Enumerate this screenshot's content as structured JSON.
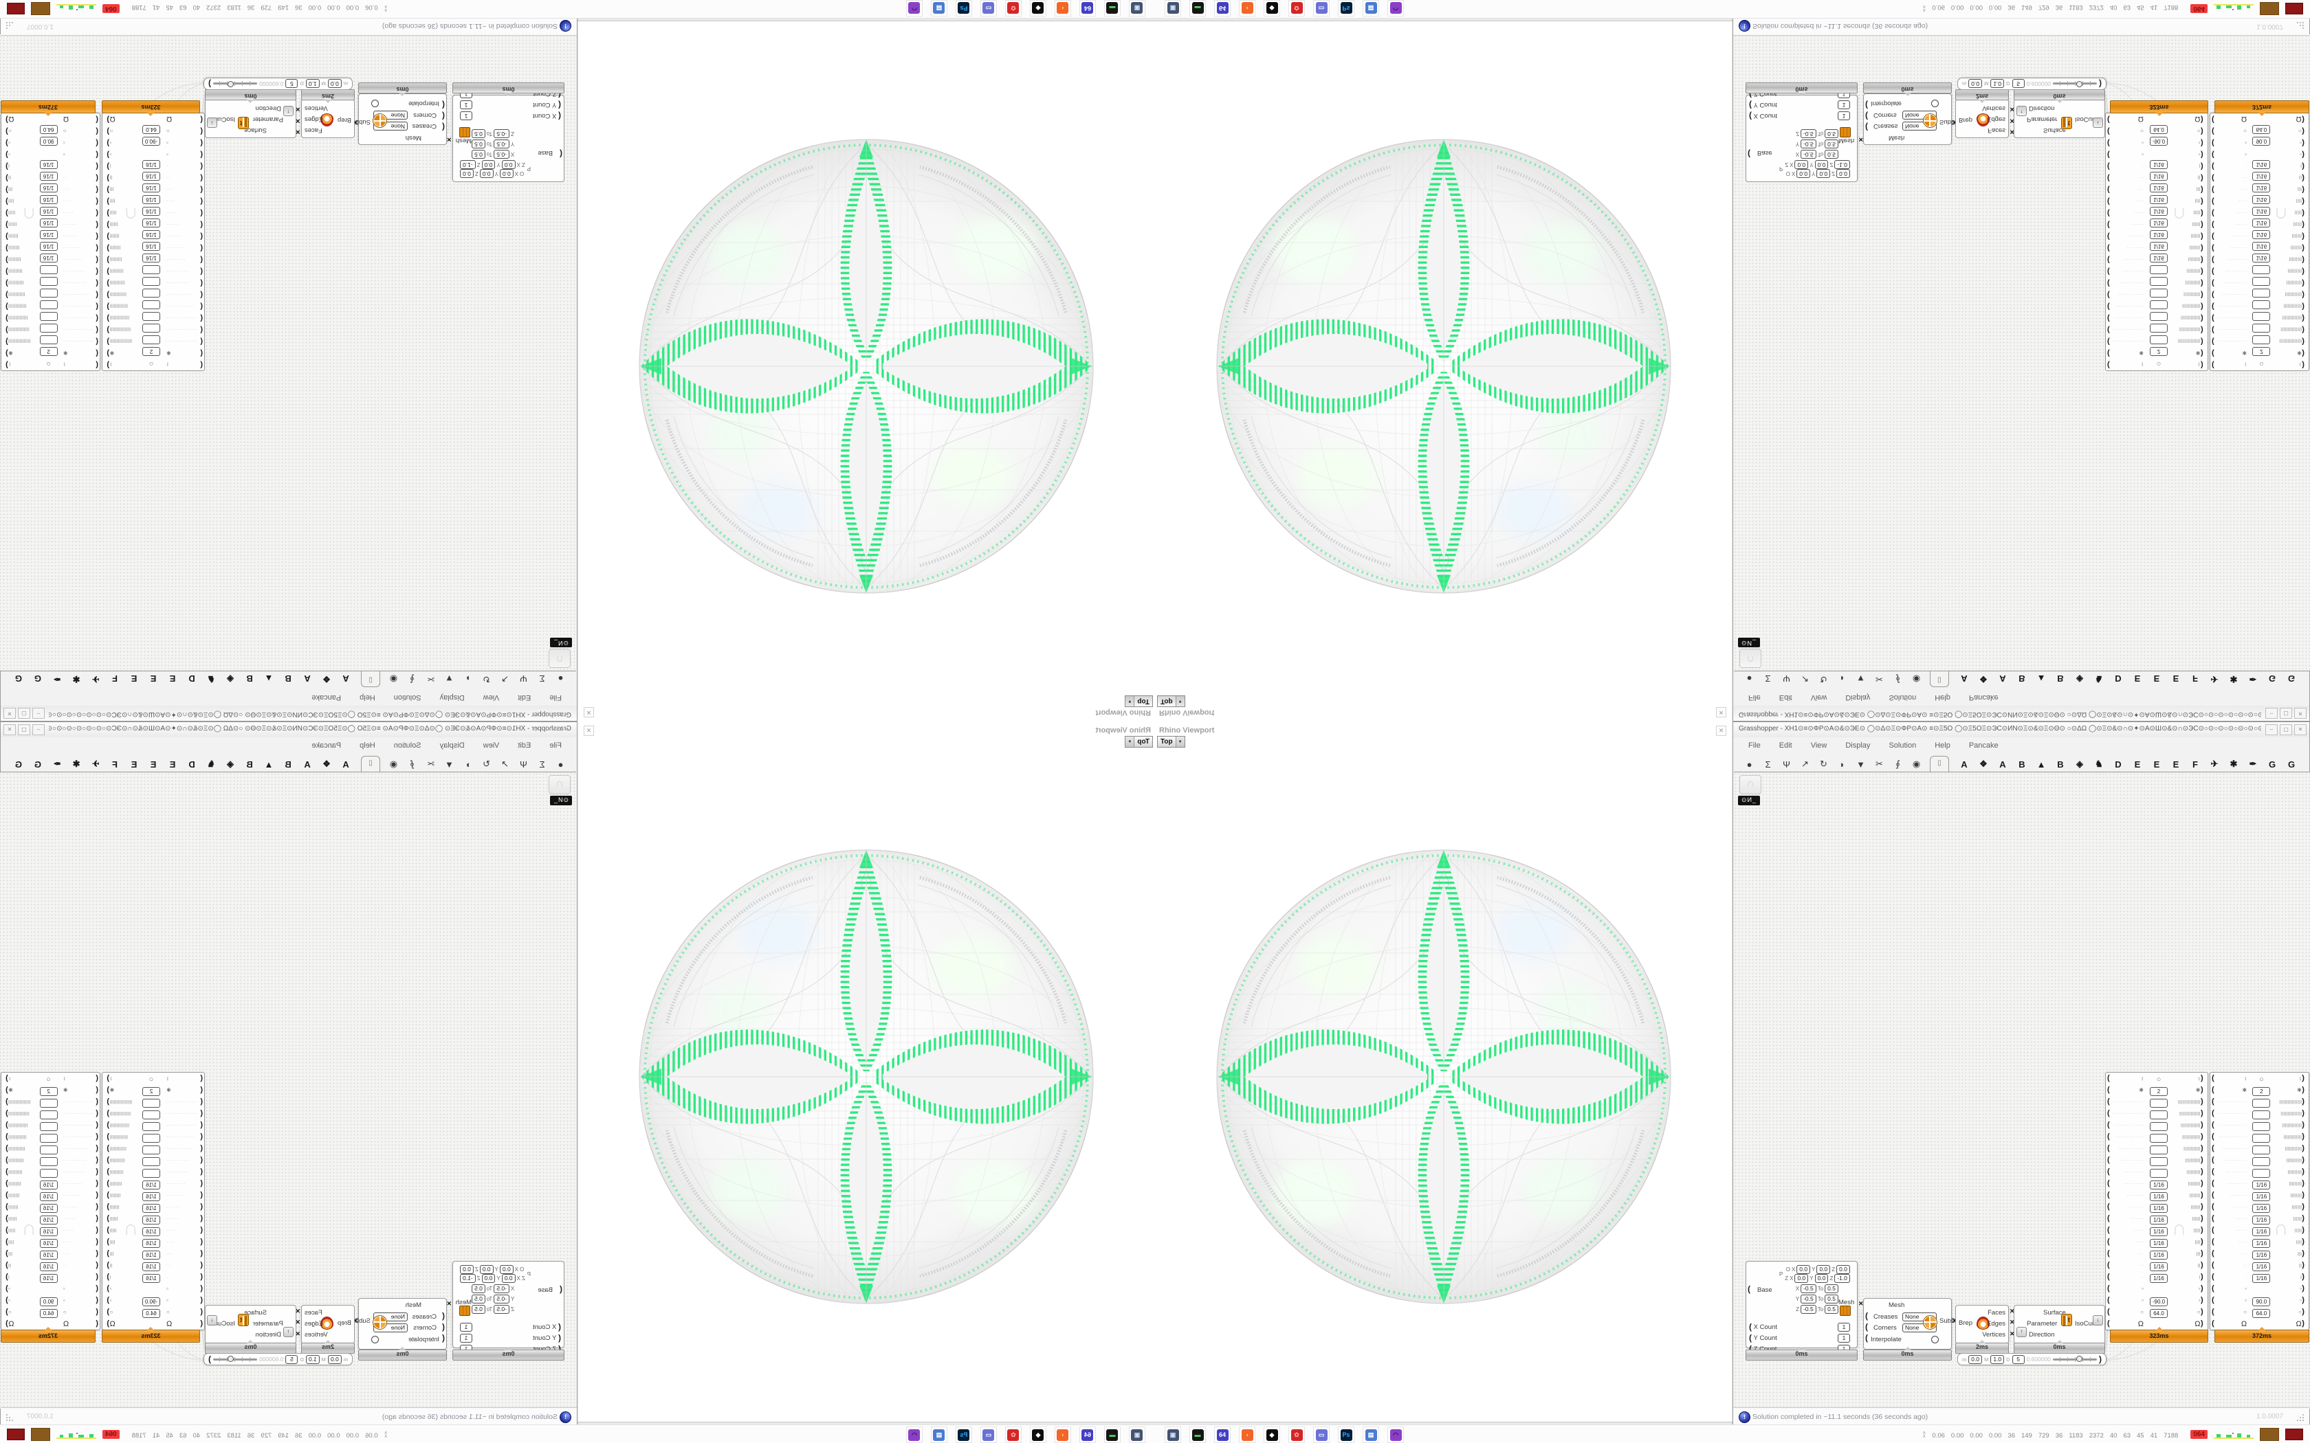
{
  "colors": {
    "petal_green": "#2fe981",
    "cap_orange": "#f09d2e",
    "badge_red": "#f03c3c"
  },
  "glyphs": {
    "close": "✕",
    "dropdown": "▼",
    "minimize": "–",
    "maximize": "▢",
    "x_conn": "✕",
    "bracket_l": "(",
    "bracket_r": ")",
    "up": "↑",
    "down": "↓",
    "ghost": "∩"
  },
  "viewport_window": {
    "title": "Rhino Viewport",
    "view_button": "Top"
  },
  "grasshopper": {
    "window_title": "Grasshopper - XH1⊙≡⊙ΦΡ⊙Α⊙&⊙ЭΕ⊙ ◯⊙Δ⊙Ξ⊙ΦΡ⊙Α⊙ ≡⊙Ξ5Ο ◯⊙Ξ5ΟΞ⊙ЭС⊙ИΝ⊙Ξ⊙&⊙Ξ⊙Θ⊙ ○⊙ΔΩ ◯⊙Ξ⊙&⊙∩⊙✦⊙Α⊙Ш⊙&⊙∩⊙ЭС⊙○⊙○⊙○⊙○⊙○⊙○⊙○⊙○⊙○Э_",
    "menu": [
      "File",
      "Edit",
      "View",
      "Display",
      "Solution",
      "Help",
      "Pancake"
    ],
    "category_tabs": [
      "●",
      "Σ",
      "Ψ",
      "↗",
      "↻",
      "◗",
      "▼",
      "✂",
      "∮",
      "◉"
    ],
    "active_tab_glyph": "▯",
    "plugin_tabs": [
      "A",
      "❖",
      "A",
      "B",
      "▲",
      "B",
      "◈",
      "♞",
      "D",
      "E",
      "E",
      "E",
      "F",
      "✈",
      "✱",
      "✒",
      "G",
      "G"
    ],
    "canvas_overlay_label": "⊙И_",
    "status": {
      "message": "Solution completed in ~11.1 seconds (36 seconds ago)",
      "version": "1.0.0007"
    },
    "nodes": {
      "box": {
        "origin_label": "O",
        "plane_label": "P",
        "plane_axis": "Z",
        "title": "Base",
        "to_label": "To",
        "origin_coords": [
          {
            "axis": "X",
            "value": "0.0"
          },
          {
            "axis": "Y",
            "value": "0.0"
          },
          {
            "axis": "Z",
            "value": "0.0"
          }
        ],
        "z_coords": [
          {
            "axis": "X",
            "value": "0.0"
          },
          {
            "axis": "Y",
            "value": "0.0"
          },
          {
            "axis": "Z",
            "value": "-1.0"
          }
        ],
        "domains": [
          {
            "axis": "X",
            "from": "-0.5",
            "to": "0.5"
          },
          {
            "axis": "Y",
            "from": "-0.5",
            "to": "0.5"
          },
          {
            "axis": "Z",
            "from": "-0.5",
            "to": "0.5"
          }
        ],
        "output_label": "Mesh",
        "counts": [
          {
            "label": "X Count",
            "value": "1"
          },
          {
            "label": "Y Count",
            "value": "1"
          },
          {
            "label": "Z Count",
            "value": "1"
          }
        ],
        "time": "0ms"
      },
      "subd": {
        "title": "Mesh",
        "creases_label": "Creases",
        "creases_value": "None",
        "corners_label": "Corners",
        "corners_value": "None",
        "interpolate_label": "Interpolate",
        "output_label": "SubD",
        "time": "0ms"
      },
      "brep": {
        "input_label": "Brep",
        "outputs": [
          "Faces",
          "Edges",
          "Vertices"
        ],
        "time": "2ms"
      },
      "iso": {
        "surface_label": "Surface",
        "parameter_label": "Parameter",
        "output_label": "IsoCurve",
        "direction_label": "Direction",
        "icon_letter": "t",
        "time": "0ms"
      },
      "slider": {
        "min_label": "m",
        "min": "0.0",
        "max_label": "M",
        "max": "1.0",
        "digits_label": "D",
        "digits": "5",
        "value": "0.600000"
      },
      "list_panels": {
        "left": {
          "time": "323ms",
          "angle": "-90.0"
        },
        "right": {
          "time": "372ms",
          "angle": "90.0"
        },
        "count_value": "2",
        "fraction": "1/16",
        "radius": "64.0",
        "omega": "Ω",
        "square": "▫",
        "circle": "○",
        "updown": "↕",
        "star": "✱",
        "rows": [
          {
            "type": "circle"
          },
          {
            "type": "count"
          },
          {
            "type": "blank",
            "dots": 16,
            "tally": 16
          },
          {
            "type": "blank",
            "dots": 15,
            "tally": 15
          },
          {
            "type": "blank",
            "dots": 14,
            "tally": 14
          },
          {
            "type": "blank",
            "dots": 13,
            "tally": 13
          },
          {
            "type": "blank",
            "dots": 12,
            "tally": 12
          },
          {
            "type": "blank",
            "dots": 11,
            "tally": 11
          },
          {
            "type": "blank",
            "dots": 10,
            "tally": 10
          },
          {
            "type": "frac",
            "dots": 9,
            "tally": 9
          },
          {
            "type": "frac",
            "dots": 8,
            "tally": 8
          },
          {
            "type": "frac",
            "dots": 7,
            "tally": 7
          },
          {
            "type": "frac",
            "dots": 6,
            "tally": 6
          },
          {
            "type": "frac",
            "dots": 5,
            "tally": 5
          },
          {
            "type": "frac",
            "dots": 4,
            "tally": 4
          },
          {
            "type": "frac",
            "dots": 3,
            "tally": 3
          },
          {
            "type": "frac",
            "dots": 2,
            "tally": 2
          },
          {
            "type": "frac",
            "dots": 1,
            "tally": 1
          },
          {
            "type": "square"
          },
          {
            "type": "angle"
          },
          {
            "type": "radius"
          },
          {
            "type": "omega"
          }
        ]
      }
    }
  },
  "taskbar": {
    "expand_glyph": "∧",
    "tray": [
      {
        "name": "screen-capture-icon",
        "bg": "#44536e",
        "fg": "#cfe0ff",
        "glyph": "▣"
      },
      {
        "name": "drive-icon",
        "bg": "#151515",
        "fg": "#52d65a",
        "glyph": "▬"
      },
      {
        "name": "floppy-64-icon",
        "bg": "#433fc4",
        "fg": "#ffffff",
        "glyph": "64"
      },
      {
        "name": "firefox-icon",
        "bg": "#f3652a",
        "fg": "#ffd23e",
        "glyph": "◖"
      },
      {
        "name": "cat-icon",
        "bg": "#0c0c0c",
        "fg": "#ffffff",
        "glyph": "◆"
      },
      {
        "name": "settings-red-icon",
        "bg": "#d42626",
        "fg": "#ff9d9d",
        "glyph": "✿"
      },
      {
        "name": "window-app-icon",
        "bg": "#6a71d6",
        "fg": "#ffffff",
        "glyph": "▭"
      },
      {
        "name": "photoshop-icon",
        "bg": "#001e36",
        "fg": "#31a8ff",
        "glyph": "Ps"
      },
      {
        "name": "system-monitor-icon",
        "bg": "#4a7bd0",
        "fg": "#ffffff",
        "glyph": "▤"
      },
      {
        "name": "avatar-purple-icon",
        "bg": "#8b3fc6",
        "fg": "#2b1140",
        "glyph": "◠"
      }
    ],
    "stats": [
      "0.06",
      "0.00",
      "0.00",
      "0.00",
      "36",
      "149",
      "729",
      "36",
      "1183",
      "2372",
      "40",
      "63",
      "45",
      "41",
      "7188"
    ],
    "alert_badge": "064"
  }
}
